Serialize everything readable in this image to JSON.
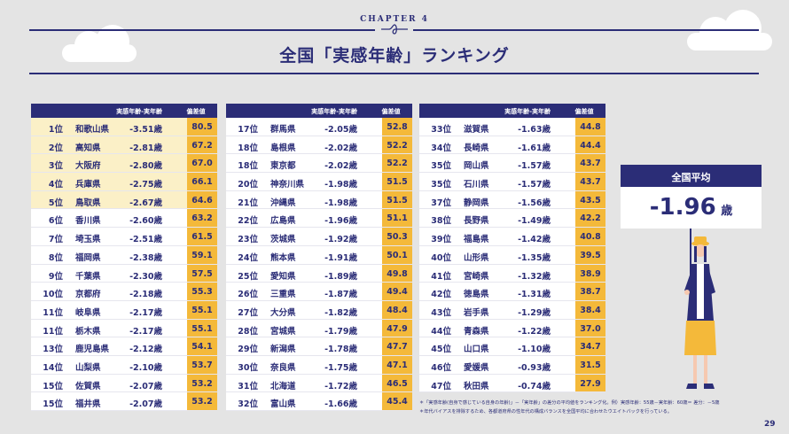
{
  "chapter_label": "CHAPTER 4",
  "title": "全国「実感年齢」ランキング",
  "table_headers": {
    "diff": "実感年齢-実年齢",
    "score": "偏差値"
  },
  "tables": [
    {
      "rows": [
        {
          "rank": "1位",
          "pref": "和歌山県",
          "diff": "-3.51歳",
          "score": "80.5"
        },
        {
          "rank": "2位",
          "pref": "高知県",
          "diff": "-2.81歳",
          "score": "67.2"
        },
        {
          "rank": "3位",
          "pref": "大阪府",
          "diff": "-2.80歳",
          "score": "67.0"
        },
        {
          "rank": "4位",
          "pref": "兵庫県",
          "diff": "-2.75歳",
          "score": "66.1"
        },
        {
          "rank": "5位",
          "pref": "鳥取県",
          "diff": "-2.67歳",
          "score": "64.6"
        },
        {
          "rank": "6位",
          "pref": "香川県",
          "diff": "-2.60歳",
          "score": "63.2"
        },
        {
          "rank": "7位",
          "pref": "埼玉県",
          "diff": "-2.51歳",
          "score": "61.5"
        },
        {
          "rank": "8位",
          "pref": "福岡県",
          "diff": "-2.38歳",
          "score": "59.1"
        },
        {
          "rank": "9位",
          "pref": "千葉県",
          "diff": "-2.30歳",
          "score": "57.5"
        },
        {
          "rank": "10位",
          "pref": "京都府",
          "diff": "-2.18歳",
          "score": "55.3"
        },
        {
          "rank": "11位",
          "pref": "岐阜県",
          "diff": "-2.17歳",
          "score": "55.1"
        },
        {
          "rank": "11位",
          "pref": "栃木県",
          "diff": "-2.17歳",
          "score": "55.1"
        },
        {
          "rank": "13位",
          "pref": "鹿児島県",
          "diff": "-2.12歳",
          "score": "54.1"
        },
        {
          "rank": "14位",
          "pref": "山梨県",
          "diff": "-2.10歳",
          "score": "53.7"
        },
        {
          "rank": "15位",
          "pref": "佐賀県",
          "diff": "-2.07歳",
          "score": "53.2"
        },
        {
          "rank": "15位",
          "pref": "福井県",
          "diff": "-2.07歳",
          "score": "53.2"
        }
      ]
    },
    {
      "rows": [
        {
          "rank": "17位",
          "pref": "群馬県",
          "diff": "-2.05歳",
          "score": "52.8"
        },
        {
          "rank": "18位",
          "pref": "島根県",
          "diff": "-2.02歳",
          "score": "52.2"
        },
        {
          "rank": "18位",
          "pref": "東京都",
          "diff": "-2.02歳",
          "score": "52.2"
        },
        {
          "rank": "20位",
          "pref": "神奈川県",
          "diff": "-1.98歳",
          "score": "51.5"
        },
        {
          "rank": "21位",
          "pref": "沖縄県",
          "diff": "-1.98歳",
          "score": "51.5"
        },
        {
          "rank": "22位",
          "pref": "広島県",
          "diff": "-1.96歳",
          "score": "51.1"
        },
        {
          "rank": "23位",
          "pref": "茨城県",
          "diff": "-1.92歳",
          "score": "50.3"
        },
        {
          "rank": "24位",
          "pref": "熊本県",
          "diff": "-1.91歳",
          "score": "50.1"
        },
        {
          "rank": "25位",
          "pref": "愛知県",
          "diff": "-1.89歳",
          "score": "49.8"
        },
        {
          "rank": "26位",
          "pref": "三重県",
          "diff": "-1.87歳",
          "score": "49.4"
        },
        {
          "rank": "27位",
          "pref": "大分県",
          "diff": "-1.82歳",
          "score": "48.4"
        },
        {
          "rank": "28位",
          "pref": "宮城県",
          "diff": "-1.79歳",
          "score": "47.9"
        },
        {
          "rank": "29位",
          "pref": "新潟県",
          "diff": "-1.78歳",
          "score": "47.7"
        },
        {
          "rank": "30位",
          "pref": "奈良県",
          "diff": "-1.75歳",
          "score": "47.1"
        },
        {
          "rank": "31位",
          "pref": "北海道",
          "diff": "-1.72歳",
          "score": "46.5"
        },
        {
          "rank": "32位",
          "pref": "富山県",
          "diff": "-1.66歳",
          "score": "45.4"
        }
      ]
    },
    {
      "rows": [
        {
          "rank": "33位",
          "pref": "滋賀県",
          "diff": "-1.63歳",
          "score": "44.8"
        },
        {
          "rank": "34位",
          "pref": "長崎県",
          "diff": "-1.61歳",
          "score": "44.4"
        },
        {
          "rank": "35位",
          "pref": "岡山県",
          "diff": "-1.57歳",
          "score": "43.7"
        },
        {
          "rank": "35位",
          "pref": "石川県",
          "diff": "-1.57歳",
          "score": "43.7"
        },
        {
          "rank": "37位",
          "pref": "静岡県",
          "diff": "-1.56歳",
          "score": "43.5"
        },
        {
          "rank": "38位",
          "pref": "長野県",
          "diff": "-1.49歳",
          "score": "42.2"
        },
        {
          "rank": "39位",
          "pref": "福島県",
          "diff": "-1.42歳",
          "score": "40.8"
        },
        {
          "rank": "40位",
          "pref": "山形県",
          "diff": "-1.35歳",
          "score": "39.5"
        },
        {
          "rank": "41位",
          "pref": "宮崎県",
          "diff": "-1.32歳",
          "score": "38.9"
        },
        {
          "rank": "42位",
          "pref": "徳島県",
          "diff": "-1.31歳",
          "score": "38.7"
        },
        {
          "rank": "43位",
          "pref": "岩手県",
          "diff": "-1.29歳",
          "score": "38.4"
        },
        {
          "rank": "44位",
          "pref": "青森県",
          "diff": "-1.22歳",
          "score": "37.0"
        },
        {
          "rank": "45位",
          "pref": "山口県",
          "diff": "-1.10歳",
          "score": "34.7"
        },
        {
          "rank": "46位",
          "pref": "愛媛県",
          "diff": "-0.93歳",
          "score": "31.5"
        },
        {
          "rank": "47位",
          "pref": "秋田県",
          "diff": "-0.74歳",
          "score": "27.9"
        }
      ]
    }
  ],
  "national_average": {
    "label": "全国平均",
    "value_int": "-1.",
    "value_dec": "96",
    "unit": "歳"
  },
  "notes": [
    "＊「実感年齢(自身で感じている自身の年齢)」－「実年齢」の差分の平均値をランキング化。例）実感年齢：55歳－実年齢：60歳＝ 差分：－5歳",
    "＊年代バイアスを排除するため、各都道府県の性年代の構成バランスを全国平均に合わせたウエイトバックを行っている。"
  ],
  "page_number": "29",
  "colors": {
    "navy": "#2b2d77",
    "gold": "#f4b93a",
    "highlight": "#fbf0c7",
    "background": "#e4e4e4"
  }
}
